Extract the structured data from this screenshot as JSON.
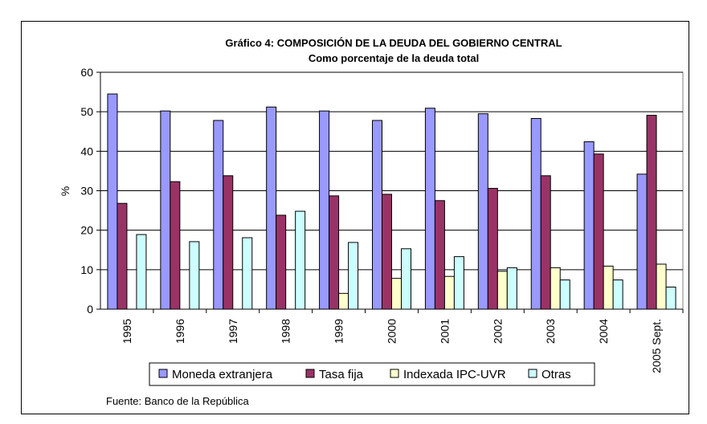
{
  "chart_data": {
    "type": "bar",
    "title": "Gráfico 4: COMPOSICIÓN DE LA DEUDA DEL GOBIERNO CENTRAL",
    "subtitle": "Como porcentaje de la deuda total",
    "xlabel": "",
    "ylabel": "%",
    "ylim": [
      0,
      60
    ],
    "yticks": [
      "0",
      "10",
      "20",
      "30",
      "40",
      "50",
      "60"
    ],
    "grid": true,
    "legend_position": "bottom",
    "categories": [
      "1995",
      "1996",
      "1997",
      "1998",
      "1999",
      "2000",
      "2001",
      "2002",
      "2003",
      "2004",
      "2005 Sept."
    ],
    "series": [
      {
        "name": "Moneda extranjera",
        "color": "#9999FF",
        "values": [
          54.5,
          50.2,
          47.8,
          51.2,
          50.2,
          47.8,
          50.9,
          49.5,
          48.3,
          42.4,
          34.2
        ]
      },
      {
        "name": "Tasa fija",
        "color": "#993366",
        "values": [
          26.8,
          32.3,
          33.8,
          23.8,
          28.7,
          29.1,
          27.5,
          30.6,
          33.8,
          39.3,
          49.1
        ]
      },
      {
        "name": "Indexada IPC-UVR",
        "color": "#FFFFCC",
        "values": [
          0,
          0,
          0,
          0,
          4.0,
          7.8,
          8.3,
          9.6,
          10.5,
          10.9,
          11.4
        ]
      },
      {
        "name": "Otras",
        "color": "#CCFFFF",
        "values": [
          18.9,
          17.1,
          18.1,
          24.8,
          16.9,
          15.3,
          13.3,
          10.5,
          7.4,
          7.4,
          5.6
        ]
      }
    ],
    "source": "Fuente: Banco de la República"
  }
}
